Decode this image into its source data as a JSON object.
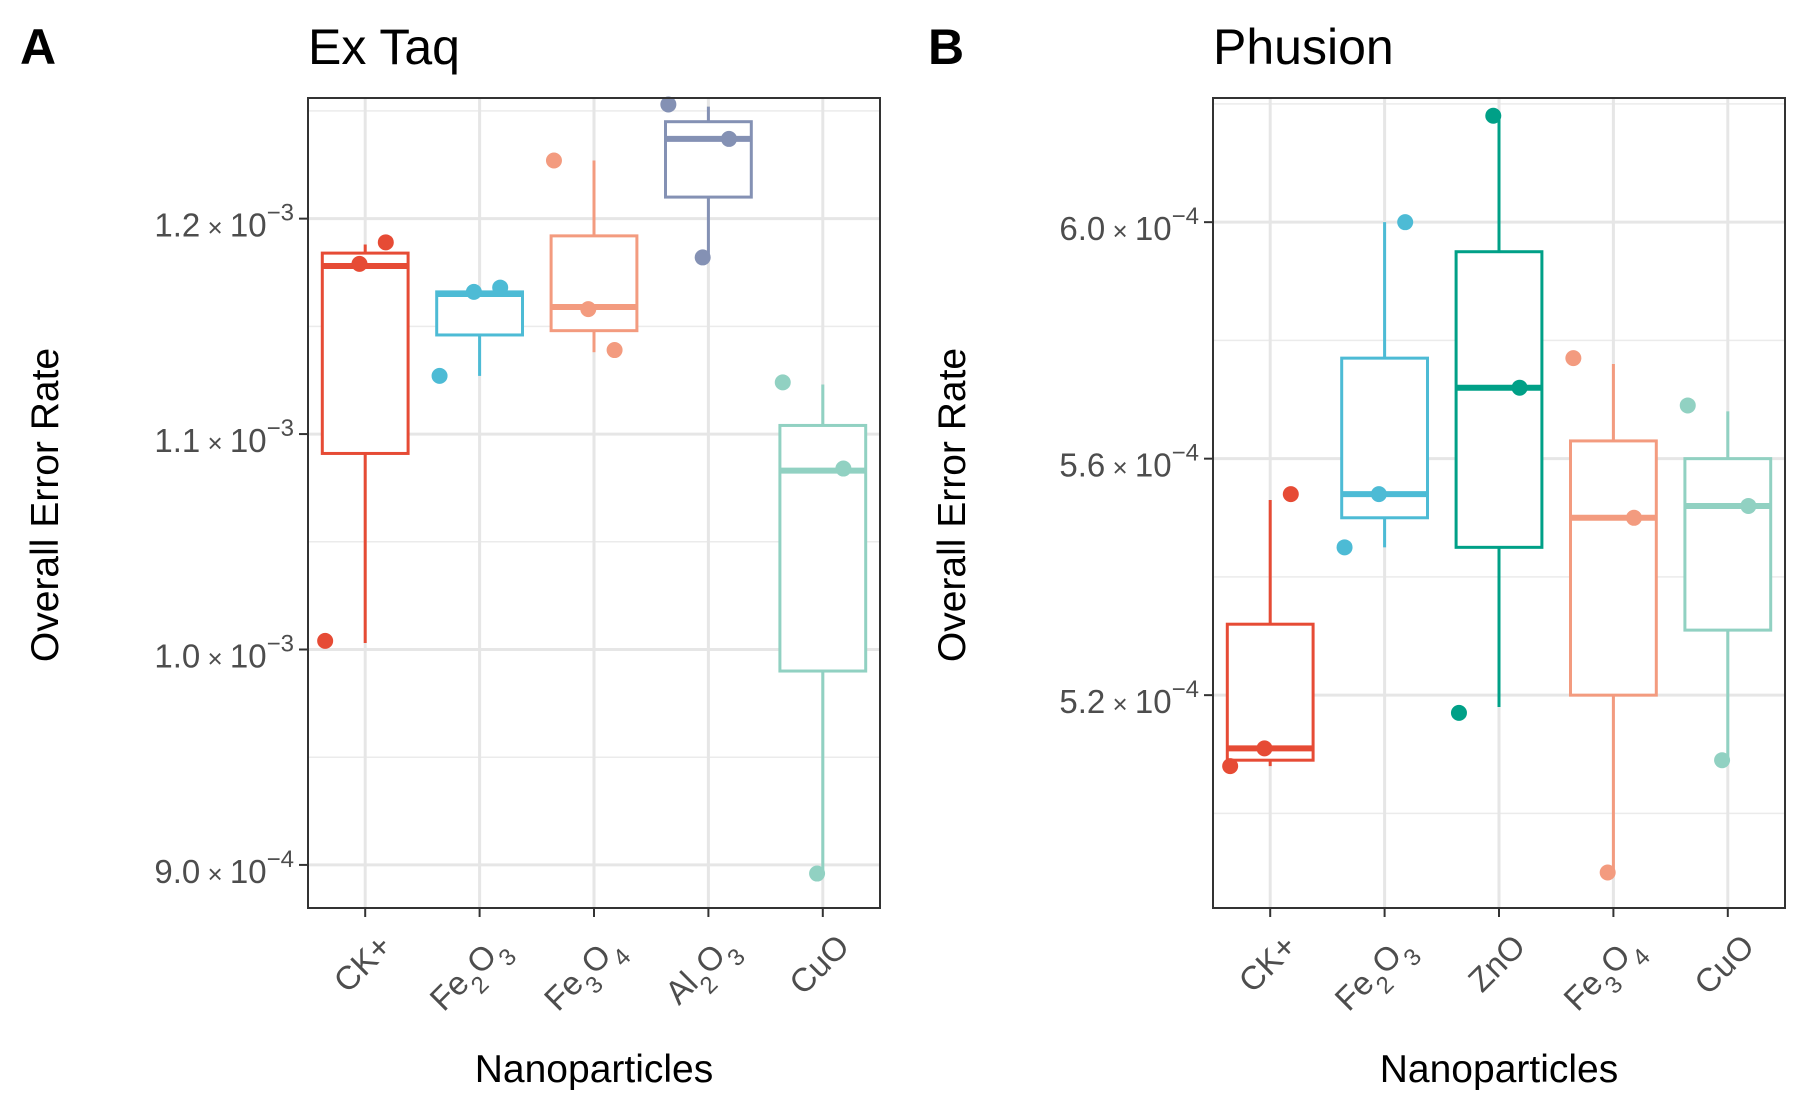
{
  "chart_data": [
    {
      "type": "box",
      "panel_label": "A",
      "title": "Ex Taq",
      "xlabel": "Nanoparticles",
      "ylabel": "Overall Error Rate",
      "ylim": [
        0.00088,
        0.001256
      ],
      "y_ticks": [
        {
          "value": 0.0009,
          "mantissa": "9.0",
          "exp": "−4"
        },
        {
          "value": 0.001,
          "mantissa": "1.0",
          "exp": "−3"
        },
        {
          "value": 0.0011,
          "mantissa": "1.1",
          "exp": "−3"
        },
        {
          "value": 0.0012,
          "mantissa": "1.2",
          "exp": "−3"
        }
      ],
      "grid": true,
      "categories": [
        {
          "base": "CK+",
          "parts": [
            {
              "t": "CK+"
            }
          ],
          "color": "#e64b35",
          "box": {
            "q1": 0.001091,
            "median": 0.001178,
            "q3": 0.001184,
            "whisker_low": 0.001003,
            "whisker_high": 0.001188
          },
          "points": [
            0.001004,
            0.001189,
            0.001179
          ]
        },
        {
          "base": "Fe2O3",
          "parts": [
            {
              "t": "Fe"
            },
            {
              "t": "2",
              "sub": true
            },
            {
              "t": "O"
            },
            {
              "t": "3",
              "sub": true
            }
          ],
          "color": "#4dbbd5",
          "box": {
            "q1": 0.001146,
            "median": 0.001165,
            "q3": 0.001166,
            "whisker_low": 0.001127,
            "whisker_high": 0.001167
          },
          "points": [
            0.001127,
            0.001168,
            0.001166
          ]
        },
        {
          "base": "Fe3O4",
          "parts": [
            {
              "t": "Fe"
            },
            {
              "t": "3",
              "sub": true
            },
            {
              "t": "O"
            },
            {
              "t": "4",
              "sub": true
            }
          ],
          "color": "#f39b7f",
          "box": {
            "q1": 0.001148,
            "median": 0.001159,
            "q3": 0.001192,
            "whisker_low": 0.001138,
            "whisker_high": 0.001227
          },
          "points": [
            0.001227,
            0.001139,
            0.001158
          ]
        },
        {
          "base": "Al2O3",
          "parts": [
            {
              "t": "Al"
            },
            {
              "t": "2",
              "sub": true
            },
            {
              "t": "O"
            },
            {
              "t": "3",
              "sub": true
            }
          ],
          "color": "#8491b4",
          "box": {
            "q1": 0.00121,
            "median": 0.001237,
            "q3": 0.001245,
            "whisker_low": 0.001182,
            "whisker_high": 0.001252
          },
          "points": [
            0.001253,
            0.001237,
            0.001182
          ]
        },
        {
          "base": "CuO",
          "parts": [
            {
              "t": "CuO"
            }
          ],
          "color": "#91d1c2",
          "box": {
            "q1": 0.00099,
            "median": 0.001083,
            "q3": 0.001104,
            "whisker_low": 0.000897,
            "whisker_high": 0.001123
          },
          "points": [
            0.001124,
            0.001084,
            0.000896
          ]
        }
      ]
    },
    {
      "type": "box",
      "panel_label": "B",
      "title": "Phusion",
      "xlabel": "Nanoparticles",
      "ylabel": "Overall Error Rate",
      "ylim": [
        0.000484,
        0.000621
      ],
      "y_ticks": [
        {
          "value": 0.00052,
          "mantissa": "5.2",
          "exp": "−4"
        },
        {
          "value": 0.00056,
          "mantissa": "5.6",
          "exp": "−4"
        },
        {
          "value": 0.0006,
          "mantissa": "6.0",
          "exp": "−4"
        }
      ],
      "grid": true,
      "categories": [
        {
          "base": "CK+",
          "parts": [
            {
              "t": "CK+"
            }
          ],
          "color": "#e64b35",
          "box": {
            "q1": 0.000509,
            "median": 0.000511,
            "q3": 0.000532,
            "whisker_low": 0.000508,
            "whisker_high": 0.000553
          },
          "points": [
            0.000508,
            0.000554,
            0.000511
          ]
        },
        {
          "base": "Fe2O3",
          "parts": [
            {
              "t": "Fe"
            },
            {
              "t": "2",
              "sub": true
            },
            {
              "t": "O"
            },
            {
              "t": "3",
              "sub": true
            }
          ],
          "color": "#4dbbd5",
          "box": {
            "q1": 0.00055,
            "median": 0.000554,
            "q3": 0.000577,
            "whisker_low": 0.000545,
            "whisker_high": 0.0006
          },
          "points": [
            0.000545,
            0.0006,
            0.000554
          ]
        },
        {
          "base": "ZnO",
          "parts": [
            {
              "t": "ZnO"
            }
          ],
          "color": "#00a087",
          "box": {
            "q1": 0.000545,
            "median": 0.000572,
            "q3": 0.000595,
            "whisker_low": 0.000518,
            "whisker_high": 0.000618
          },
          "points": [
            0.000517,
            0.000572,
            0.000618
          ]
        },
        {
          "base": "Fe3O4",
          "parts": [
            {
              "t": "Fe"
            },
            {
              "t": "3",
              "sub": true
            },
            {
              "t": "O"
            },
            {
              "t": "4",
              "sub": true
            }
          ],
          "color": "#f39b7f",
          "box": {
            "q1": 0.00052,
            "median": 0.00055,
            "q3": 0.000563,
            "whisker_low": 0.00049,
            "whisker_high": 0.000576
          },
          "points": [
            0.000577,
            0.00055,
            0.00049
          ]
        },
        {
          "base": "CuO",
          "parts": [
            {
              "t": "CuO"
            }
          ],
          "color": "#91d1c2",
          "box": {
            "q1": 0.000531,
            "median": 0.000552,
            "q3": 0.00056,
            "whisker_low": 0.000509,
            "whisker_high": 0.000568
          },
          "points": [
            0.000569,
            0.000552,
            0.000509
          ]
        }
      ]
    }
  ]
}
